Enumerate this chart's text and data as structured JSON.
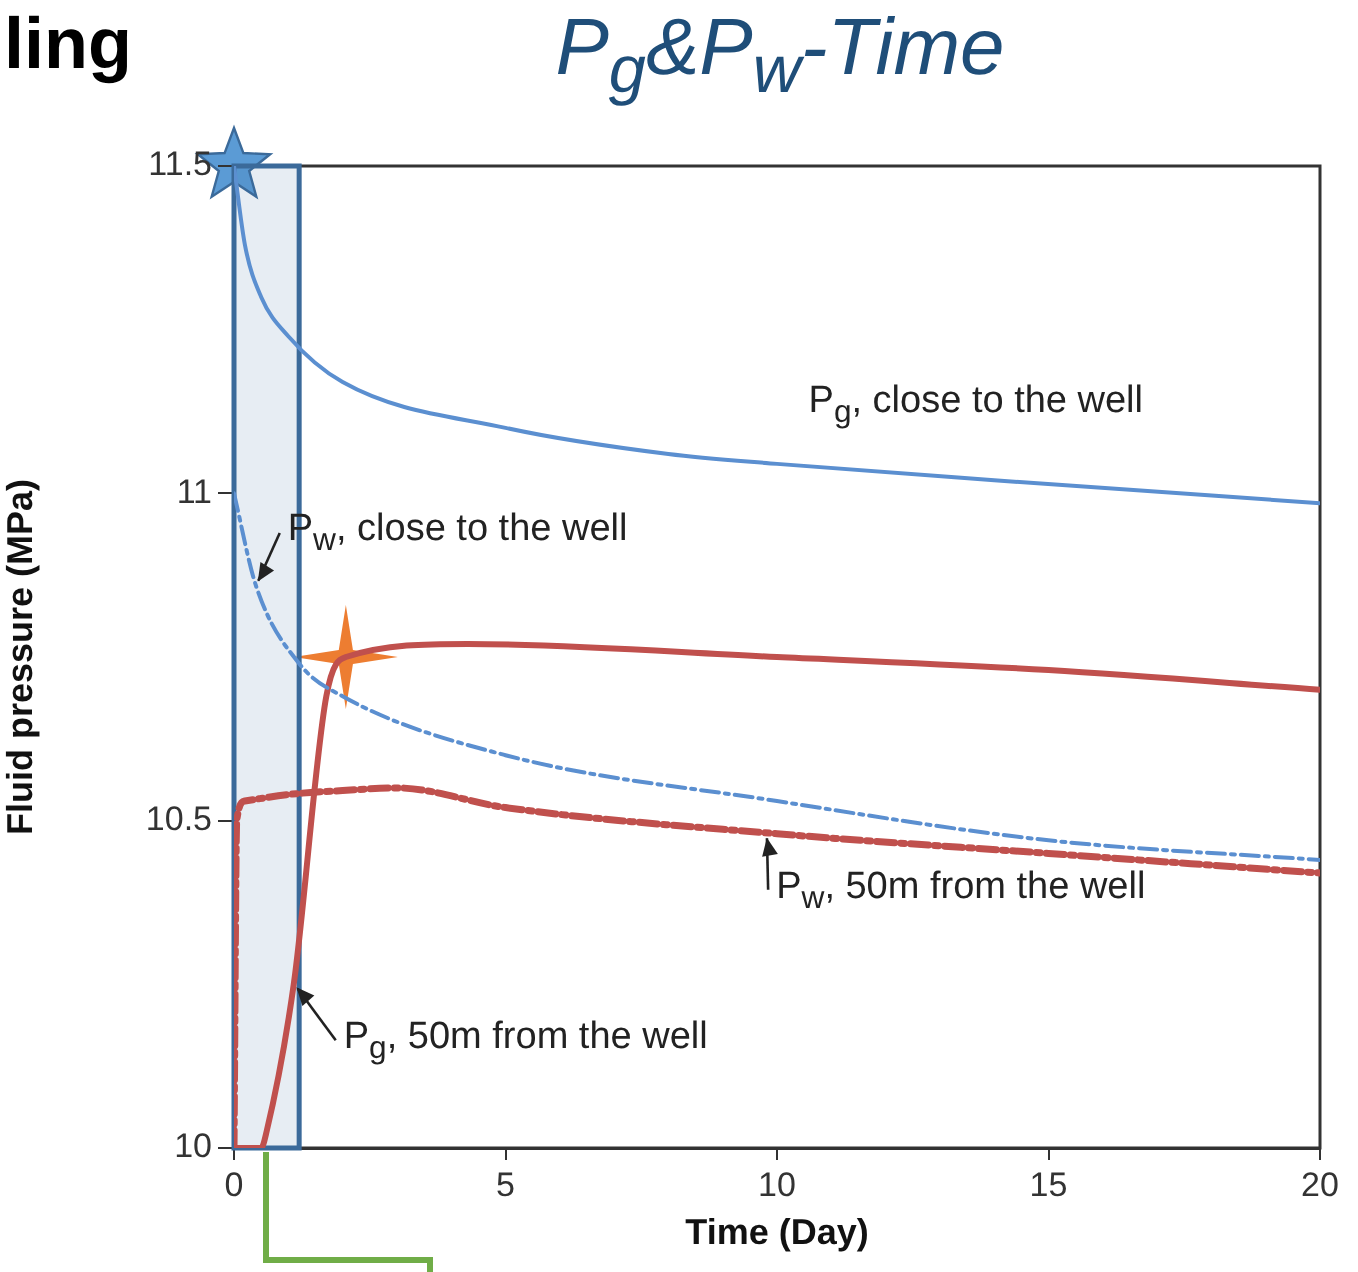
{
  "chart_data": {
    "type": "line",
    "title": "P$_{g}$&P$_{w}$-Time",
    "xlabel": "Time (Day)",
    "ylabel": "Fluid pressure (MPa)",
    "xlim": [
      0,
      20
    ],
    "ylim": [
      10,
      11.5
    ],
    "xticks": [
      0,
      5,
      10,
      15,
      20
    ],
    "yticks": [
      10,
      10.5,
      11,
      11.5
    ],
    "grid": false,
    "legend": false,
    "marker": "none",
    "series": [
      {
        "x": [
          0,
          0.2,
          0.5,
          1,
          2,
          5,
          8,
          10,
          14,
          20
        ],
        "values": [
          11.5,
          11.38,
          11.3,
          11.24,
          11.17,
          11.1,
          11.06,
          11.045,
          11.02,
          10.985
        ],
        "color": "#5b8fd0",
        "line_style": "solid"
      },
      {
        "x": [
          0,
          0.4,
          1.2,
          2,
          5,
          10,
          15,
          20
        ],
        "values": [
          11.0,
          10.86,
          10.74,
          10.69,
          10.6,
          10.53,
          10.47,
          10.44
        ],
        "color": "#5b8fd0",
        "line_style": "dashed"
      },
      {
        "x": [
          0,
          0.5,
          0.6,
          1.1,
          1.7,
          2.06,
          4.3,
          10,
          15,
          20
        ],
        "values": [
          10,
          10,
          10.025,
          10.25,
          10.69,
          10.75,
          10.77,
          10.75,
          10.73,
          10.7
        ],
        "color": "#c0504d",
        "line_style": "solid"
      },
      {
        "x": [
          0,
          0.05,
          0.2,
          1,
          2,
          3,
          5,
          10,
          15,
          20
        ],
        "values": [
          10,
          10.5,
          10.53,
          10.54,
          10.546,
          10.55,
          10.52,
          10.48,
          10.45,
          10.42
        ],
        "color": "#c0504d",
        "line_style": "dashed"
      }
    ],
    "bands": [
      {
        "axis": "x",
        "from": 0,
        "to": 1.2,
        "color": "#3b6a9a"
      }
    ],
    "annotations": [
      {
        "text": "P$_{g}$, close to the well",
        "x": 15,
        "y": 11.02
      },
      {
        "text": "P$_{w}$, close to the well",
        "x": 0.4,
        "y": 10.86
      },
      {
        "text": "P$_{w}$, 50m from the well",
        "x": 9.8,
        "y": 10.48
      },
      {
        "text": "P$_{g}$, 50m from the well",
        "x": 1.1,
        "y": 10.25
      },
      "ling"
    ]
  }
}
